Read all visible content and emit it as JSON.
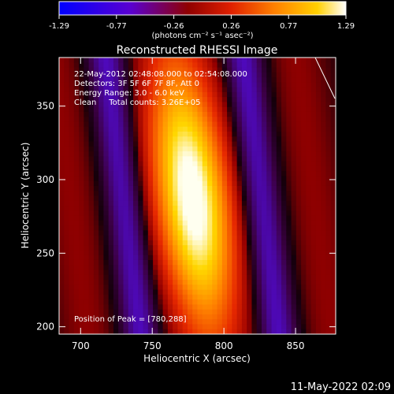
{
  "chart_data": {
    "type": "heatmap",
    "title": "Reconstructed RHESSI Image",
    "xlabel": "Heliocentric X (arcsec)",
    "ylabel": "Heliocentric Y (arcsec)",
    "xlim": [
      685,
      878
    ],
    "ylim": [
      195,
      383
    ],
    "x_ticks": [
      700,
      750,
      800,
      850
    ],
    "y_ticks": [
      200,
      250,
      300,
      350
    ],
    "colorbar": {
      "min": -1.29,
      "max": 1.29,
      "ticks": [
        "-1.29",
        "-0.77",
        "-0.26",
        "0.26",
        "0.77",
        "1.29"
      ],
      "units": "(photons cm⁻² s⁻¹ asec⁻²)"
    },
    "annotations": [
      "22-May-2012 02:48:08.000 to 02:54:08.000",
      "Detectors: 3F 5F 6F 7F 8F, Att 0",
      "Energy Range: 3.0 - 6.0 keV",
      "Clean     Total counts: 3.26E+05"
    ],
    "peak_label": "Position of Peak = [780,288]",
    "peak": {
      "x": 780,
      "y": 288,
      "value": 1.29
    },
    "timestamp": "11-May-2022 02:09"
  }
}
